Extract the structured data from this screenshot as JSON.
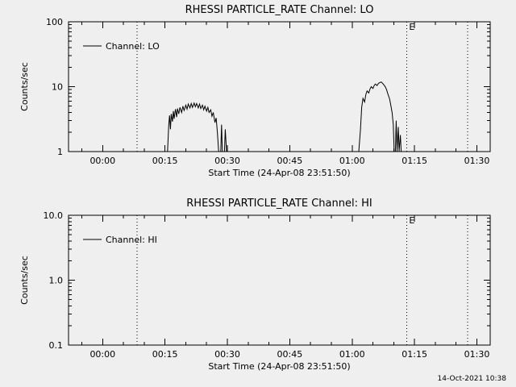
{
  "colors": {
    "background": "#efefef",
    "foreground": "#000000"
  },
  "footer": {
    "timestamp": "14-Oct-2021 10:38"
  },
  "chart_data": [
    {
      "type": "line",
      "title": "RHESSI PARTICLE_RATE Channel: LO",
      "xlabel": "Start Time (24-Apr-08 23:51:50)",
      "ylabel": "Counts/sec",
      "legend": "Channel: LO",
      "legend_position": "upper-left-inside",
      "yscale": "log",
      "ylim": [
        1,
        100
      ],
      "yticks": [
        1,
        10,
        100
      ],
      "ytick_labels": [
        "1",
        "10",
        "100"
      ],
      "xlim_minutes": [
        -8.2,
        93.2
      ],
      "xticks_minutes": [
        0,
        15,
        30,
        45,
        60,
        75,
        90
      ],
      "xtick_labels": [
        "00:00",
        "00:15",
        "00:30",
        "00:45",
        "01:00",
        "01:15",
        "01:30"
      ],
      "xminor_step_minutes": 5,
      "grid": false,
      "vlines_minutes": [
        8.3,
        73.1,
        87.8
      ],
      "vline_style": "dotted",
      "vline_label": "E",
      "vline_label_index": 1,
      "series": [
        {
          "name": "Channel: LO",
          "segments": [
            [
              [
                15.6,
                1.0
              ],
              [
                15.9,
                2.6
              ],
              [
                16.1,
                3.6
              ],
              [
                16.3,
                2.2
              ],
              [
                16.5,
                3.8
              ],
              [
                16.8,
                2.9
              ],
              [
                17.0,
                4.2
              ],
              [
                17.2,
                3.2
              ],
              [
                17.5,
                4.5
              ],
              [
                17.8,
                3.4
              ],
              [
                18.0,
                4.6
              ],
              [
                18.3,
                3.8
              ],
              [
                18.6,
                4.8
              ],
              [
                19.0,
                4.0
              ],
              [
                19.3,
                5.0
              ],
              [
                19.6,
                4.3
              ],
              [
                20.0,
                5.2
              ],
              [
                20.3,
                4.5
              ],
              [
                20.6,
                5.4
              ],
              [
                21.0,
                4.7
              ],
              [
                21.3,
                5.5
              ],
              [
                21.6,
                4.8
              ],
              [
                22.0,
                5.6
              ],
              [
                22.3,
                4.9
              ],
              [
                22.6,
                5.5
              ],
              [
                23.0,
                4.7
              ],
              [
                23.3,
                5.4
              ],
              [
                23.6,
                4.6
              ],
              [
                24.0,
                5.2
              ],
              [
                24.3,
                4.4
              ],
              [
                24.6,
                5.0
              ],
              [
                25.0,
                4.2
              ],
              [
                25.3,
                4.8
              ],
              [
                25.6,
                4.0
              ],
              [
                26.0,
                4.4
              ],
              [
                26.3,
                3.5
              ],
              [
                26.6,
                4.0
              ],
              [
                27.0,
                2.8
              ],
              [
                27.3,
                3.3
              ],
              [
                27.6,
                2.0
              ],
              [
                27.9,
                1.0
              ],
              [
                28.4,
                1.0
              ],
              [
                28.6,
                2.6
              ],
              [
                28.8,
                1.0
              ],
              [
                29.3,
                1.0
              ],
              [
                29.5,
                2.2
              ],
              [
                29.8,
                1.0
              ]
            ],
            [
              [
                61.6,
                1.0
              ],
              [
                62.0,
                2.2
              ],
              [
                62.3,
                4.8
              ],
              [
                62.6,
                6.6
              ],
              [
                63.0,
                5.8
              ],
              [
                63.3,
                7.6
              ],
              [
                63.6,
                8.6
              ],
              [
                64.0,
                8.0
              ],
              [
                64.3,
                9.2
              ],
              [
                64.6,
                10.0
              ],
              [
                65.0,
                9.4
              ],
              [
                65.3,
                10.4
              ],
              [
                65.6,
                11.0
              ],
              [
                66.0,
                10.4
              ],
              [
                66.3,
                11.2
              ],
              [
                66.6,
                11.5
              ],
              [
                67.0,
                11.8
              ],
              [
                67.3,
                11.3
              ],
              [
                67.6,
                10.7
              ],
              [
                68.0,
                9.9
              ],
              [
                68.3,
                8.9
              ],
              [
                68.6,
                7.7
              ],
              [
                69.0,
                6.5
              ],
              [
                69.3,
                5.2
              ],
              [
                69.6,
                4.0
              ],
              [
                69.9,
                2.6
              ],
              [
                70.1,
                1.0
              ],
              [
                70.4,
                1.0
              ],
              [
                70.6,
                3.0
              ],
              [
                70.8,
                1.0
              ],
              [
                71.1,
                2.4
              ],
              [
                71.3,
                1.0
              ],
              [
                71.6,
                1.8
              ],
              [
                71.8,
                1.0
              ]
            ]
          ]
        }
      ]
    },
    {
      "type": "line",
      "title": "RHESSI PARTICLE_RATE Channel: HI",
      "xlabel": "Start Time (24-Apr-08 23:51:50)",
      "ylabel": "Counts/sec",
      "legend": "Channel: HI",
      "legend_position": "upper-left-inside",
      "yscale": "log",
      "ylim": [
        0.1,
        10
      ],
      "yticks": [
        0.1,
        1,
        10
      ],
      "ytick_labels": [
        "0.1",
        "1.0",
        "10.0"
      ],
      "xlim_minutes": [
        -8.2,
        93.2
      ],
      "xticks_minutes": [
        0,
        15,
        30,
        45,
        60,
        75,
        90
      ],
      "xtick_labels": [
        "00:00",
        "00:15",
        "00:30",
        "00:45",
        "01:00",
        "01:15",
        "01:30"
      ],
      "xminor_step_minutes": 5,
      "grid": false,
      "vlines_minutes": [
        8.3,
        73.1,
        87.8
      ],
      "vline_style": "dotted",
      "vline_label": "E",
      "vline_label_index": 1,
      "series": []
    }
  ]
}
